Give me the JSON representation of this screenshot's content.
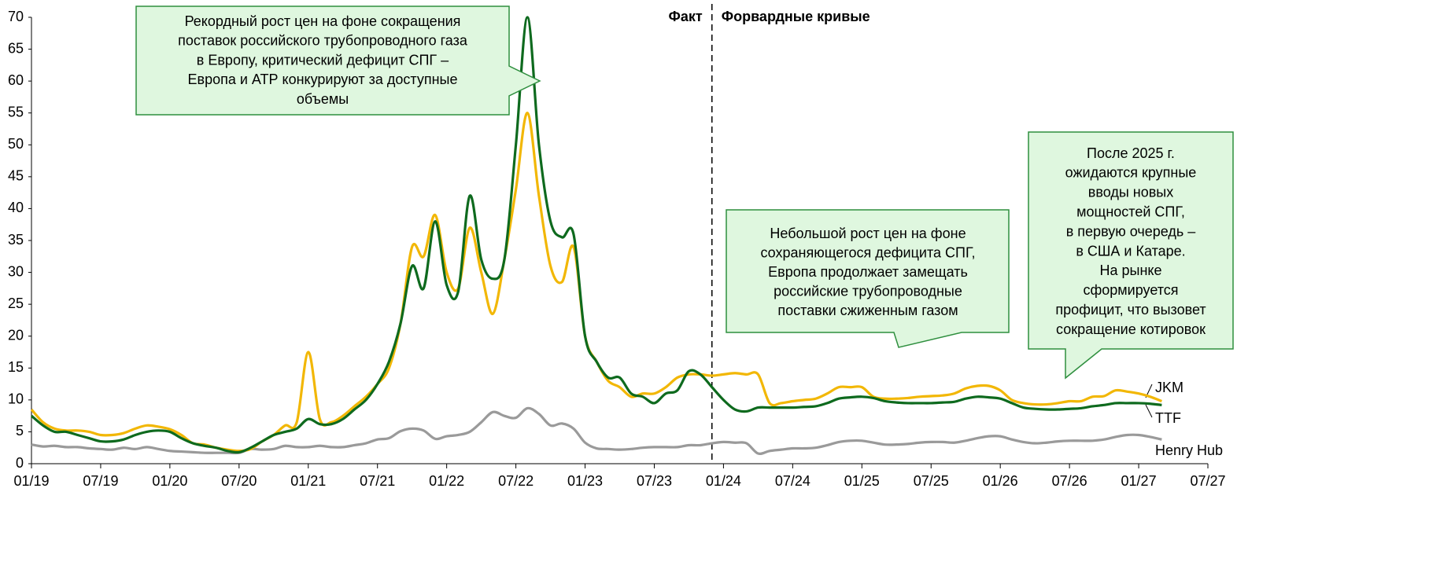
{
  "chart_data": {
    "type": "line",
    "x": [
      "01/19",
      "02/19",
      "03/19",
      "04/19",
      "05/19",
      "06/19",
      "07/19",
      "08/19",
      "09/19",
      "10/19",
      "11/19",
      "12/19",
      "01/20",
      "02/20",
      "03/20",
      "04/20",
      "05/20",
      "06/20",
      "07/20",
      "08/20",
      "09/20",
      "10/20",
      "11/20",
      "12/20",
      "01/21",
      "02/21",
      "03/21",
      "04/21",
      "05/21",
      "06/21",
      "07/21",
      "08/21",
      "09/21",
      "10/21",
      "11/21",
      "12/21",
      "01/22",
      "02/22",
      "03/22",
      "04/22",
      "05/22",
      "06/22",
      "07/22",
      "08/22",
      "09/22",
      "10/22",
      "11/22",
      "12/22",
      "01/23",
      "02/23",
      "03/23",
      "04/23",
      "05/23",
      "06/23",
      "07/23",
      "08/23",
      "09/23",
      "10/23",
      "11/23",
      "12/23",
      "01/24",
      "02/24",
      "03/24",
      "04/24",
      "05/24",
      "06/24",
      "07/24",
      "08/24",
      "09/24",
      "10/24",
      "11/24",
      "12/24",
      "01/25",
      "02/25",
      "03/25",
      "04/25",
      "05/25",
      "06/25",
      "07/25",
      "08/25",
      "09/25",
      "10/25",
      "11/25",
      "12/25",
      "01/26",
      "02/26",
      "03/26",
      "04/26",
      "05/26",
      "06/26",
      "07/26",
      "08/26",
      "09/26",
      "10/26",
      "11/26",
      "12/26",
      "01/27",
      "02/27",
      "03/27"
    ],
    "series": [
      {
        "name": "JKM",
        "color": "#f2b705",
        "values": [
          8.5,
          6.5,
          5.5,
          5.2,
          5.2,
          5,
          4.5,
          4.5,
          4.8,
          5.5,
          6,
          5.8,
          5.4,
          4.5,
          3.2,
          3,
          2.5,
          2.2,
          2,
          2.3,
          3.5,
          4.5,
          6,
          6.5,
          17.5,
          7,
          6.5,
          7.5,
          9,
          10.5,
          12.5,
          15,
          22,
          34,
          32.5,
          39,
          30,
          27.5,
          37,
          30,
          23.5,
          32,
          43,
          55,
          42,
          31,
          28.5,
          34,
          20,
          16,
          13,
          12,
          10.5,
          11,
          11,
          12,
          13.5,
          14,
          14,
          13.8,
          14,
          14.2,
          14,
          14,
          9.5,
          9.5,
          9.8,
          10,
          10.2,
          11,
          12,
          12,
          12,
          10.5,
          10.2,
          10.2,
          10.3,
          10.5,
          10.6,
          10.7,
          11,
          11.8,
          12.2,
          12.2,
          11.5,
          10,
          9.5,
          9.3,
          9.3,
          9.5,
          9.8,
          9.8,
          10.5,
          10.6,
          11.5,
          11.3,
          11,
          10.5,
          9.8
        ]
      },
      {
        "name": "TTF",
        "color": "#0e6a1e",
        "values": [
          7.5,
          6,
          5,
          5,
          4.5,
          4,
          3.5,
          3.5,
          3.8,
          4.5,
          5,
          5.2,
          5,
          4,
          3.2,
          2.8,
          2.5,
          2,
          1.8,
          2.5,
          3.5,
          4.5,
          5,
          5.5,
          7,
          6.2,
          6.2,
          7,
          8.5,
          10,
          12.5,
          16,
          22,
          31,
          27.5,
          38,
          28,
          27,
          42,
          32,
          29,
          32,
          50,
          70,
          50,
          38,
          35.5,
          36,
          20,
          16,
          13.5,
          13.5,
          11,
          10.5,
          9.5,
          11,
          11.5,
          14.5,
          14,
          12,
          10,
          8.5,
          8.2,
          8.8,
          8.8,
          8.8,
          8.8,
          8.9,
          9,
          9.5,
          10.2,
          10.4,
          10.5,
          10.3,
          9.8,
          9.6,
          9.5,
          9.5,
          9.5,
          9.6,
          9.7,
          10.2,
          10.5,
          10.4,
          10.2,
          9.5,
          8.8,
          8.6,
          8.5,
          8.5,
          8.6,
          8.7,
          9,
          9.2,
          9.5,
          9.5,
          9.5,
          9.4,
          9.2
        ]
      },
      {
        "name": "Henry Hub",
        "color": "#9a9a9a",
        "values": [
          3,
          2.7,
          2.8,
          2.6,
          2.6,
          2.4,
          2.3,
          2.2,
          2.5,
          2.3,
          2.6,
          2.3,
          2,
          1.9,
          1.8,
          1.7,
          1.7,
          1.7,
          1.7,
          2.3,
          2.2,
          2.3,
          2.8,
          2.6,
          2.6,
          2.8,
          2.6,
          2.6,
          2.9,
          3.2,
          3.8,
          4,
          5.1,
          5.5,
          5.2,
          3.9,
          4.3,
          4.5,
          5,
          6.5,
          8.1,
          7.5,
          7.2,
          8.7,
          7.8,
          6,
          6.3,
          5.5,
          3.3,
          2.4,
          2.3,
          2.2,
          2.3,
          2.5,
          2.6,
          2.6,
          2.6,
          2.9,
          2.9,
          3.2,
          3.4,
          3.3,
          3.2,
          1.6,
          2,
          2.2,
          2.4,
          2.4,
          2.5,
          2.9,
          3.4,
          3.6,
          3.6,
          3.3,
          3,
          3,
          3.1,
          3.3,
          3.4,
          3.4,
          3.3,
          3.6,
          4,
          4.3,
          4.3,
          3.8,
          3.4,
          3.2,
          3.3,
          3.5,
          3.6,
          3.6,
          3.6,
          3.8,
          4.2,
          4.5,
          4.5,
          4.2,
          3.8
        ]
      }
    ],
    "xlim": [
      "01/19",
      "07/27"
    ],
    "xticks": [
      "01/19",
      "07/19",
      "01/20",
      "07/20",
      "01/21",
      "07/21",
      "01/22",
      "07/22",
      "01/23",
      "07/23",
      "01/24",
      "07/24",
      "01/25",
      "07/25",
      "01/26",
      "07/26",
      "01/27",
      "07/27"
    ],
    "ylim": [
      0,
      70
    ],
    "yticks": [
      0,
      5,
      10,
      15,
      20,
      25,
      30,
      35,
      40,
      45,
      50,
      55,
      60,
      65,
      70
    ],
    "divider": "12/23",
    "divider_labels": [
      "Факт",
      "Форвардные кривые"
    ],
    "annotations": [
      [
        "Рекордный рост цен на фоне сокращения",
        "поставок российского трубопроводного газа",
        "в Европу, критический дефицит СПГ –",
        "Европа и АТР конкурируют за доступные",
        "объемы"
      ],
      [
        "Небольшой рост цен на фоне",
        "сохраняющегося дефицита СПГ,",
        "Европа продолжает замещать",
        "российские трубопроводные",
        "поставки сжиженным газом"
      ],
      [
        "После 2025 г.",
        "ожидаются крупные",
        "вводы новых",
        "мощностей СПГ,",
        "в первую очередь –",
        "в США и Катаре.",
        "На рынке",
        "сформируется",
        "профицит, что вызовет",
        "сокращение котировок"
      ]
    ]
  }
}
